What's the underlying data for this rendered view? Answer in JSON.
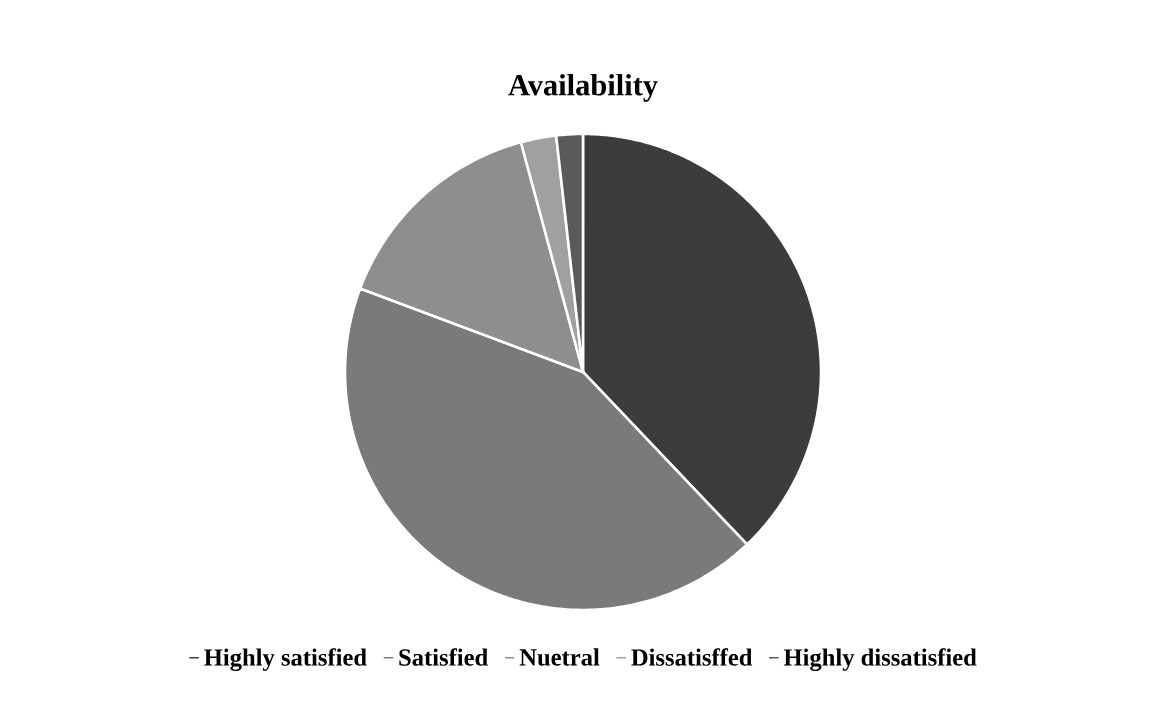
{
  "chart_data": {
    "type": "pie",
    "title": "Availability",
    "categories": [
      "Highly satisfied",
      "Satisfied",
      "Nuetral",
      "Dissatisffed",
      "Highly dissatisfied"
    ],
    "values": [
      37.9,
      42.8,
      15.1,
      2.4,
      1.8
    ],
    "colors": [
      "#3c3c3c",
      "#7a7a7a",
      "#8e8e8e",
      "#a0a0a0",
      "#5a5a5a"
    ],
    "legend": "bottom"
  }
}
